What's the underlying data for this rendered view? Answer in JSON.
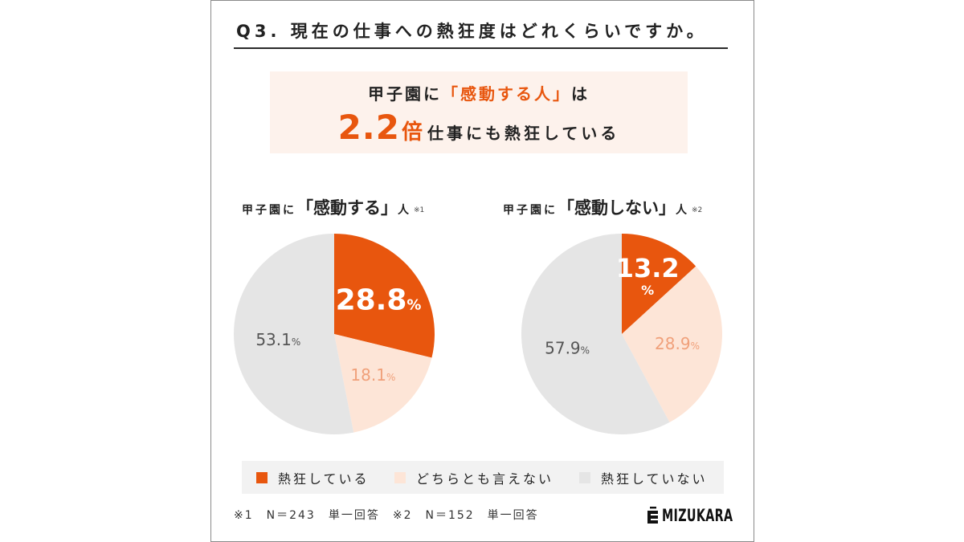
{
  "title": "Q3. 現在の仕事への熱狂度はどれくらいですか。",
  "highlight": {
    "line1": "甲子園に「感動する人」は",
    "ratio": "2.2",
    "ratio_unit": "倍",
    "line2": "仕事にも熱狂している"
  },
  "colors": {
    "accent": "#e8560e",
    "highlight_bg": "#fdf2ec",
    "legend_bg": "#f2f2f2"
  },
  "chart_data": [
    {
      "type": "pie",
      "title": "甲子園に「感動する」人",
      "note": "※1",
      "unit": "%",
      "categories": [
        "熱狂している",
        "どちらとも言えない",
        "熱狂していない"
      ],
      "values": [
        28.8,
        18.1,
        53.1
      ],
      "colors": [
        "#e8560e",
        "#fde5d7",
        "#e5e5e5"
      ],
      "label_colors": [
        "#ffffff",
        "#f0a07a",
        "#555555"
      ],
      "legend_position": "bottom"
    },
    {
      "type": "pie",
      "title": "甲子園に「感動しない」人",
      "note": "※2",
      "unit": "%",
      "categories": [
        "熱狂している",
        "どちらとも言えない",
        "熱狂していない"
      ],
      "values": [
        13.2,
        28.9,
        57.9
      ],
      "colors": [
        "#e8560e",
        "#fde5d7",
        "#e5e5e5"
      ],
      "label_colors": [
        "#ffffff",
        "#f0a07a",
        "#555555"
      ],
      "legend_position": "bottom"
    }
  ],
  "footnotes": [
    "※1　N＝243　単一回答",
    "※2　N＝152　単一回答"
  ],
  "logo": {
    "text": "MIZUKARA",
    "icon": "mizukara-logo-icon"
  }
}
